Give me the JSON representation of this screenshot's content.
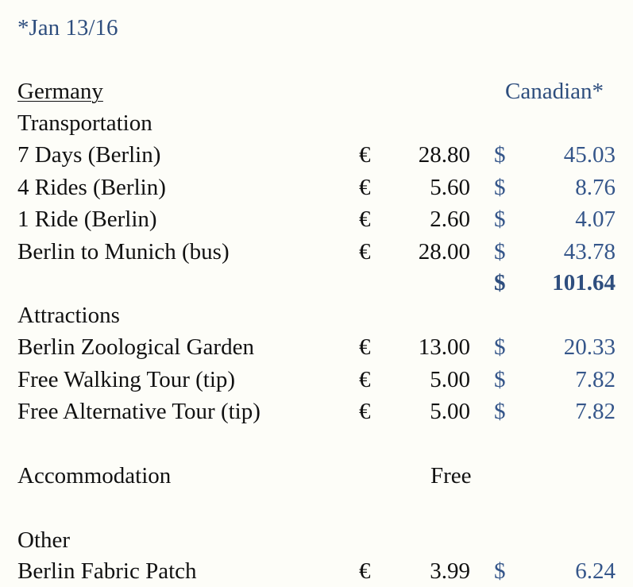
{
  "date_note": "*Jan 13/16",
  "country": "Germany ",
  "currency_header": "Canadian*",
  "sections": {
    "transportation": {
      "title": "Transportation",
      "items": [
        {
          "label": "7 Days (Berlin)",
          "eur_sign": "€",
          "eur": "28.80",
          "cad_sign": "$",
          "cad": "45.03"
        },
        {
          "label": "4 Rides (Berlin)",
          "eur_sign": "€",
          "eur": "5.60",
          "cad_sign": "$",
          "cad": "8.76"
        },
        {
          "label": "1 Ride (Berlin)",
          "eur_sign": "€",
          "eur": "2.60",
          "cad_sign": "$",
          "cad": "4.07"
        },
        {
          "label": "Berlin to Munich (bus)",
          "eur_sign": "€",
          "eur": "28.00",
          "cad_sign": "$",
          "cad": "43.78"
        }
      ],
      "total_sign": "$",
      "total": "101.64"
    },
    "attractions": {
      "title": "Attractions",
      "items": [
        {
          "label": "Berlin Zoological Garden",
          "eur_sign": "€",
          "eur": "13.00",
          "cad_sign": "$",
          "cad": "20.33"
        },
        {
          "label": "Free Walking Tour (tip)",
          "eur_sign": "€",
          "eur": "5.00",
          "cad_sign": "$",
          "cad": "7.82"
        },
        {
          "label": "Free Alternative Tour (tip)",
          "eur_sign": "€",
          "eur": "5.00",
          "cad_sign": "$",
          "cad": "7.82"
        }
      ]
    },
    "accommodation": {
      "title": "Accommodation",
      "value": "Free"
    },
    "other": {
      "title": "Other",
      "items": [
        {
          "label": "Berlin Fabric Patch",
          "eur_sign": "€",
          "eur": "3.99",
          "cad_sign": "$",
          "cad": "6.24"
        }
      ]
    }
  },
  "colors": {
    "accent": "#2e4e7e",
    "background": "#fdfdf8",
    "text": "#111111"
  }
}
